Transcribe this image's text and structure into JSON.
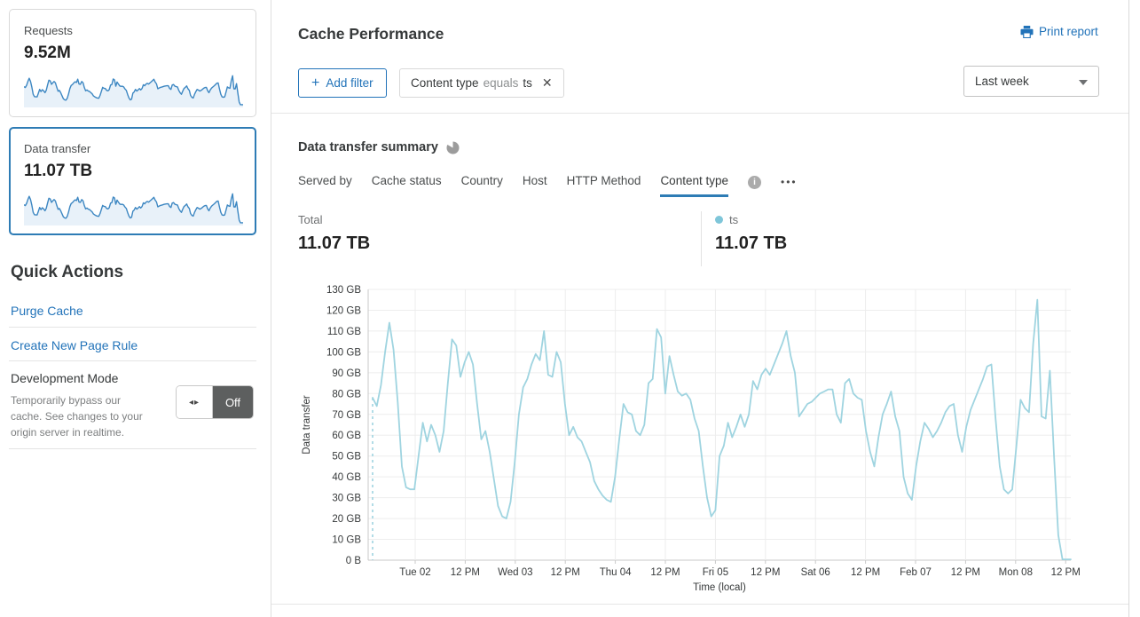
{
  "sidebar": {
    "requests_card": {
      "label": "Requests",
      "value": "9.52M"
    },
    "data_transfer_card": {
      "label": "Data transfer",
      "value": "11.07 TB"
    },
    "quick_actions": {
      "title": "Quick Actions",
      "links": [
        "Purge Cache",
        "Create New Page Rule"
      ],
      "dev_mode": {
        "label": "Development Mode",
        "description": "Temporarily bypass our cache. See changes to your origin server in realtime.",
        "toggle_state": "Off"
      }
    }
  },
  "header": {
    "title": "Cache Performance",
    "print_label": "Print report"
  },
  "filters": {
    "add_label": "Add filter",
    "chip": {
      "field": "Content type",
      "operator": "equals",
      "value": "ts"
    },
    "time_range": "Last week"
  },
  "summary": {
    "title": "Data transfer summary",
    "tabs": [
      {
        "label": "Served by",
        "active": false
      },
      {
        "label": "Cache status",
        "active": false
      },
      {
        "label": "Country",
        "active": false
      },
      {
        "label": "Host",
        "active": false
      },
      {
        "label": "HTTP Method",
        "active": false
      },
      {
        "label": "Content type",
        "active": true
      }
    ],
    "total_label": "Total",
    "total_value": "11.07 TB",
    "series_label": "ts",
    "series_value": "11.07 TB"
  },
  "chart_data": {
    "type": "line",
    "title": "Data transfer summary",
    "xlabel": "Time (local)",
    "ylabel": "Data transfer",
    "unit": "GB per hour",
    "y_max_gb": 130,
    "y_ticks": [
      "0 B",
      "10 GB",
      "20 GB",
      "30 GB",
      "40 GB",
      "50 GB",
      "60 GB",
      "70 GB",
      "80 GB",
      "90 GB",
      "100 GB",
      "110 GB",
      "120 GB",
      "130 GB"
    ],
    "x_ticks": [
      "Tue 02",
      "12 PM",
      "Wed 03",
      "12 PM",
      "Thu 04",
      "12 PM",
      "Fri 05",
      "12 PM",
      "Sat 06",
      "12 PM",
      "Feb 07",
      "12 PM",
      "Mon 08",
      "12 PM"
    ],
    "grid": true,
    "legend_position": "top",
    "series": [
      {
        "name": "ts",
        "color": "#9fd4e0",
        "total": "11.07 TB",
        "values": [
          78,
          74,
          84,
          100,
          114,
          101,
          76,
          45,
          35,
          34,
          34,
          50,
          66,
          57,
          65,
          60,
          52,
          62,
          85,
          106,
          103,
          88,
          95,
          100,
          94,
          75,
          58,
          62,
          52,
          39,
          26,
          21,
          20,
          28,
          47,
          70,
          83,
          87,
          94,
          99,
          96,
          110,
          89,
          88,
          100,
          95,
          75,
          60,
          64,
          59,
          57,
          52,
          47,
          38,
          34,
          31,
          29,
          28,
          40,
          58,
          75,
          71,
          70,
          62,
          60,
          65,
          85,
          87,
          111,
          107,
          80,
          98,
          89,
          81,
          79,
          80,
          77,
          68,
          62,
          45,
          30,
          21,
          24,
          50,
          55,
          66,
          59,
          64,
          70,
          64,
          70,
          86,
          82,
          89,
          92,
          89,
          94,
          99,
          104,
          110,
          98,
          90,
          69,
          72,
          75,
          76,
          78,
          80,
          81,
          82,
          82,
          70,
          66,
          85,
          87,
          80,
          78,
          77,
          62,
          52,
          45,
          59,
          70,
          75,
          81,
          69,
          62,
          40,
          32,
          29,
          45,
          57,
          66,
          63,
          59,
          62,
          66,
          71,
          74,
          75,
          60,
          52,
          64,
          72,
          77,
          82,
          87,
          93,
          94,
          68,
          45,
          34,
          32,
          34,
          55,
          77,
          73,
          71,
          104,
          125,
          69,
          68,
          91,
          50,
          12,
          0.4,
          0.4,
          0.4
        ]
      }
    ]
  },
  "colors": {
    "accent_blue": "#2273b9",
    "tab_underline": "#2e7cb5",
    "chart_line": "#9fd4e0",
    "legend_dot": "#7fc6d9",
    "sparkline": "#3d87c2",
    "sparkline_fill": "#e8f1f9",
    "toggle_off_bg": "#5d5f5f"
  }
}
